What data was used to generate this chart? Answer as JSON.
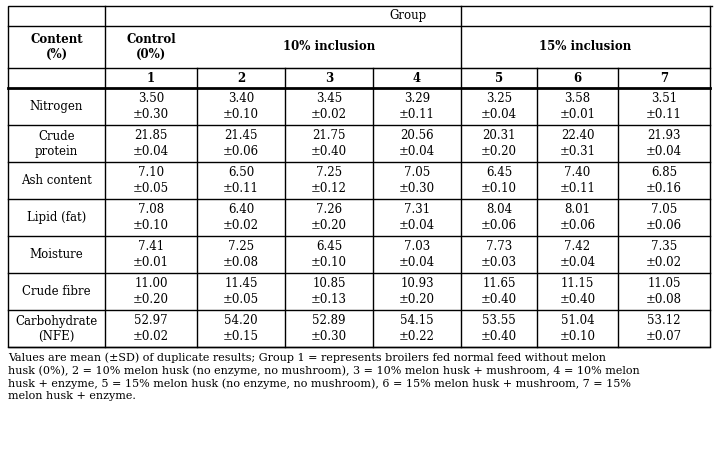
{
  "rows": [
    {
      "label": "Nitrogen",
      "values": [
        "3.50",
        "3.40",
        "3.45",
        "3.29",
        "3.25",
        "3.58",
        "3.51"
      ],
      "sd": [
        "±0.30",
        "±0.10",
        "±0.02",
        "±0.11",
        "±0.04",
        "±0.01",
        "±0.11"
      ]
    },
    {
      "label": "Crude\nprotein",
      "values": [
        "21.85",
        "21.45",
        "21.75",
        "20.56",
        "20.31",
        "22.40",
        "21.93"
      ],
      "sd": [
        "±0.04",
        "±0.06",
        "±0.40",
        "±0.04",
        "±0.20",
        "±0.31",
        "±0.04"
      ]
    },
    {
      "label": "Ash content",
      "values": [
        "7.10",
        "6.50",
        "7.25",
        "7.05",
        "6.45",
        "7.40",
        "6.85"
      ],
      "sd": [
        "±0.05",
        "±0.11",
        "±0.12",
        "±0.30",
        "±0.10",
        "±0.11",
        "±0.16"
      ]
    },
    {
      "label": "Lipid (fat)",
      "values": [
        "7.08",
        "6.40",
        "7.26",
        "7.31",
        "8.04",
        "8.01",
        "7.05"
      ],
      "sd": [
        "±0.10",
        "±0.02",
        "±0.20",
        "±0.04",
        "±0.06",
        "±0.06",
        "±0.06"
      ]
    },
    {
      "label": "Moisture",
      "values": [
        "7.41",
        "7.25",
        "6.45",
        "7.03",
        "7.73",
        "7.42",
        "7.35"
      ],
      "sd": [
        "±0.01",
        "±0.08",
        "±0.10",
        "±0.04",
        "±0.03",
        "±0.04",
        "±0.02"
      ]
    },
    {
      "label": "Crude fibre",
      "values": [
        "11.00",
        "11.45",
        "10.85",
        "10.93",
        "11.65",
        "11.15",
        "11.05"
      ],
      "sd": [
        "±0.20",
        "±0.05",
        "±0.13",
        "±0.20",
        "±0.40",
        "±0.40",
        "±0.08"
      ]
    },
    {
      "label": "Carbohydrate\n(NFE)",
      "values": [
        "52.97",
        "54.20",
        "52.89",
        "54.15",
        "53.55",
        "51.04",
        "53.12"
      ],
      "sd": [
        "±0.02",
        "±0.15",
        "±0.30",
        "±0.22",
        "±0.40",
        "±0.10",
        "±0.07"
      ]
    }
  ],
  "footnote": "Values are mean (±SD) of duplicate results; Group 1 = represents broilers fed normal feed without melon husk (0%), 2 = 10% melon husk (no enzyme, no mushroom), 3 = 10% melon husk + mushroom, 4 = 10% melon husk + enzyme, 5 = 15% melon husk (no enzyme, no mushroom), 6 = 15% melon husk + mushroom, 7 = 15% melon husk + enzyme.",
  "bg_color": "#ffffff",
  "text_color": "#000000",
  "font_size": 8.5
}
